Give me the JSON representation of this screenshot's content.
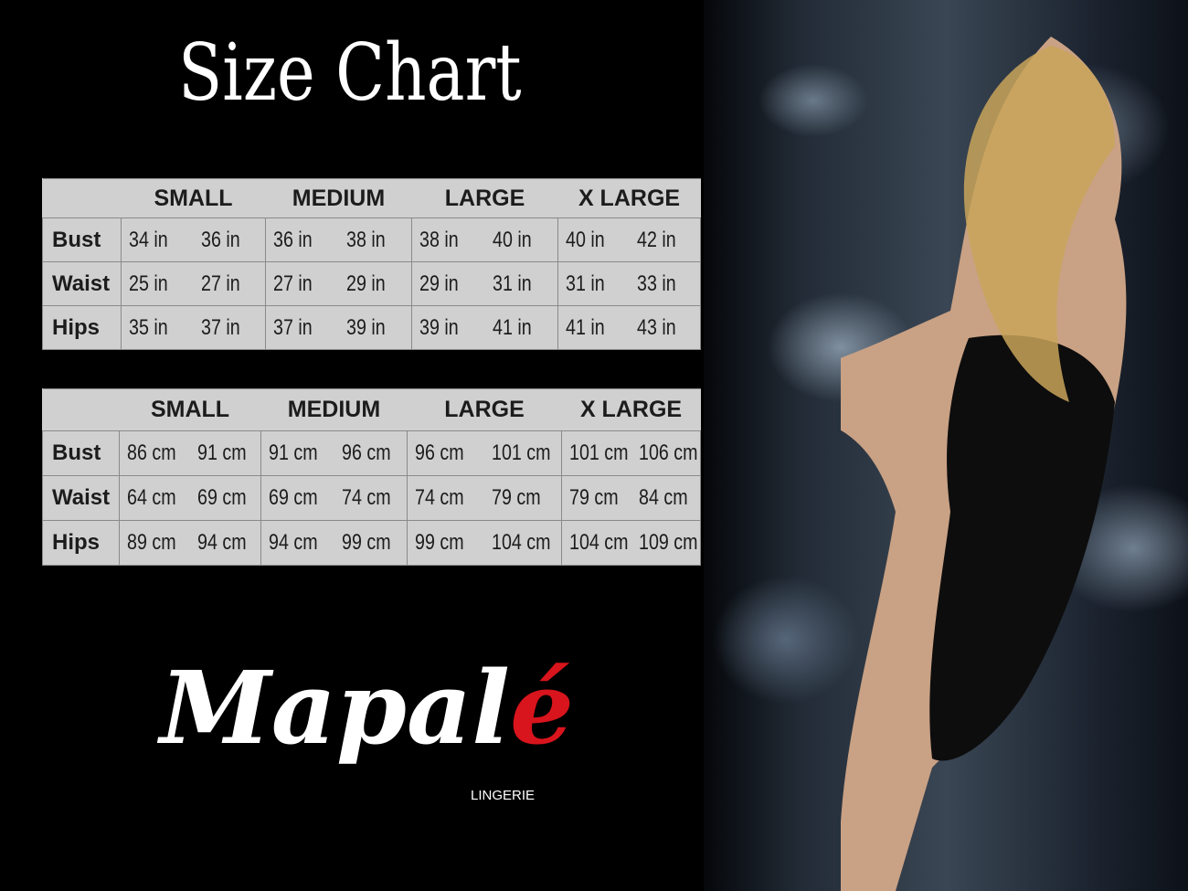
{
  "title": "Size Chart",
  "sizes": [
    "SMALL",
    "MEDIUM",
    "LARGE",
    "X LARGE"
  ],
  "inches": {
    "rows": [
      {
        "label": "Bust",
        "values": [
          "34 in",
          "36 in",
          "36 in",
          "38 in",
          "38 in",
          "40 in",
          "40 in",
          "42 in"
        ]
      },
      {
        "label": "Waist",
        "values": [
          "25 in",
          "27 in",
          "27 in",
          "29 in",
          "29 in",
          "31 in",
          "31 in",
          "33 in"
        ]
      },
      {
        "label": "Hips",
        "values": [
          "35 in",
          "37 in",
          "37 in",
          "39 in",
          "39 in",
          "41 in",
          "41 in",
          "43 in"
        ]
      }
    ]
  },
  "centimeters": {
    "rows": [
      {
        "label": "Bust",
        "values": [
          "86 cm",
          "91 cm",
          "91 cm",
          "96 cm",
          "96 cm",
          "101 cm",
          "101 cm",
          "106 cm"
        ]
      },
      {
        "label": "Waist",
        "values": [
          "64 cm",
          "69 cm",
          "69 cm",
          "74 cm",
          "74 cm",
          "79  cm",
          "79 cm",
          "84 cm"
        ]
      },
      {
        "label": "Hips",
        "values": [
          "89 cm",
          "94 cm",
          "94 cm",
          "99 cm",
          "99 cm",
          "104 cm",
          "104 cm",
          "109 cm"
        ]
      }
    ]
  },
  "logo": {
    "name_main": "Mapal",
    "name_accent": "é",
    "tagline": "LINGERIE",
    "accent_color": "#d8141c"
  },
  "colors": {
    "background": "#000000",
    "table_bg": "#d0d0d0"
  }
}
